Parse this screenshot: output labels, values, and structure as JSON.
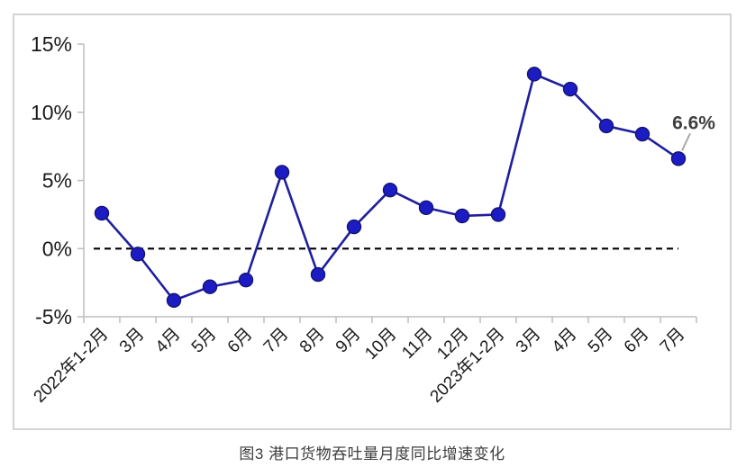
{
  "chart_data": {
    "type": "line",
    "title": "",
    "caption": "图3 港口货物吞吐量月度同比增速变化",
    "categories": [
      "2022年1-2月",
      "3月",
      "4月",
      "5月",
      "6月",
      "7月",
      "8月",
      "9月",
      "10月",
      "11月",
      "12月",
      "2023年1-2月",
      "3月",
      "4月",
      "5月",
      "6月",
      "7月"
    ],
    "series": [
      {
        "name": "港口货物吞吐量月度同比增速",
        "values": [
          2.6,
          -0.4,
          -3.8,
          -2.8,
          -2.3,
          5.6,
          -1.9,
          1.6,
          4.3,
          3.0,
          2.4,
          2.5,
          12.8,
          11.7,
          9.0,
          8.4,
          6.6
        ]
      }
    ],
    "xlabel": "",
    "ylabel": "",
    "ylim": [
      -5,
      15
    ],
    "yticks": [
      15,
      10,
      5,
      0,
      -5
    ],
    "ytick_labels": [
      "15%",
      "10%",
      "5%",
      "0%",
      "-5%"
    ],
    "grid": false,
    "legend": "none",
    "zero_line_style": "dashed",
    "annotation": {
      "text": "6.6%",
      "index": 16
    },
    "colors": {
      "line": "#1f1f9e",
      "marker": "#1c1cc4",
      "marker_edge": "#14146f",
      "axis": "#bdbdbd",
      "tick_label": "#1a1a1a",
      "zero_line": "#000000",
      "annotation_text": "#3f3f3f",
      "leader_line": "#a9a9a9",
      "frame_border": "#d4d4d4",
      "caption_text": "#3c3c3c"
    }
  }
}
